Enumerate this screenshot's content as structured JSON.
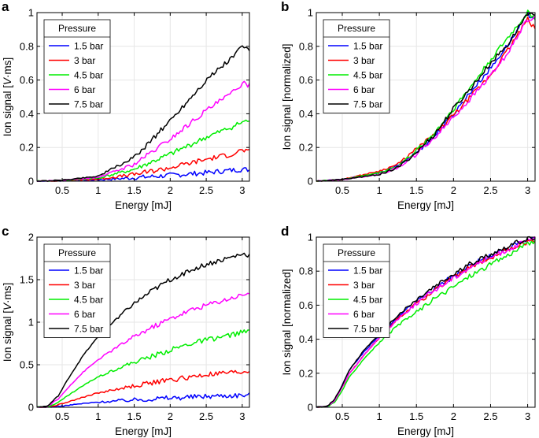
{
  "chart_data": [
    {
      "panel": "a",
      "type": "line",
      "xlabel": "Energy [mJ]",
      "ylabel": "Ion signal [V·ms]",
      "ylabel_parts": [
        "Ion signal [",
        "V",
        "·ms]"
      ],
      "xlim": [
        0.15,
        3.1
      ],
      "ylim": [
        0,
        1
      ],
      "xticks": [
        "0.5",
        "1",
        "1.5",
        "2",
        "2.5",
        "3"
      ],
      "yticks": [
        "0",
        "0.2",
        "0.4",
        "0.6",
        "0.8",
        "1"
      ],
      "grid": true,
      "legend_title": "Pressure",
      "legend_position": "top-left",
      "series": [
        {
          "name": "1.5 bar",
          "color": "#0000ff",
          "x": [
            0.15,
            0.5,
            1.0,
            1.5,
            2.0,
            2.5,
            2.85,
            3.0,
            3.1
          ],
          "y": [
            0,
            0.002,
            0.008,
            0.02,
            0.035,
            0.05,
            0.065,
            0.07,
            0.068
          ]
        },
        {
          "name": "3 bar",
          "color": "#ff0000",
          "x": [
            0.15,
            0.5,
            1.0,
            1.5,
            2.0,
            2.5,
            2.85,
            3.0,
            3.1
          ],
          "y": [
            0,
            0.003,
            0.012,
            0.04,
            0.08,
            0.13,
            0.16,
            0.185,
            0.175
          ]
        },
        {
          "name": "4.5 bar",
          "color": "#00ee00",
          "x": [
            0.15,
            0.5,
            1.0,
            1.5,
            2.0,
            2.5,
            2.85,
            3.0,
            3.1
          ],
          "y": [
            0,
            0.004,
            0.018,
            0.07,
            0.16,
            0.26,
            0.32,
            0.35,
            0.36
          ]
        },
        {
          "name": "6 bar",
          "color": "#ff00ff",
          "x": [
            0.15,
            0.5,
            1.0,
            1.5,
            2.0,
            2.5,
            2.85,
            3.0,
            3.1
          ],
          "y": [
            0,
            0.005,
            0.022,
            0.1,
            0.25,
            0.42,
            0.52,
            0.58,
            0.57
          ]
        },
        {
          "name": "7.5 bar",
          "color": "#000000",
          "x": [
            0.15,
            0.5,
            1.0,
            1.5,
            2.0,
            2.5,
            2.85,
            3.0,
            3.1
          ],
          "y": [
            0,
            0.006,
            0.03,
            0.14,
            0.36,
            0.6,
            0.73,
            0.8,
            0.78
          ]
        }
      ]
    },
    {
      "panel": "b",
      "type": "line",
      "xlabel": "Energy [mJ]",
      "ylabel": "Ion signal [normalized]",
      "xlim": [
        0.15,
        3.1
      ],
      "ylim": [
        0,
        1
      ],
      "xticks": [
        "0.5",
        "1",
        "1.5",
        "2",
        "2.5",
        "3"
      ],
      "yticks": [
        "0",
        "0.2",
        "0.4",
        "0.6",
        "0.8",
        "1"
      ],
      "grid": true,
      "legend_title": "Pressure",
      "legend_position": "top-left",
      "series": [
        {
          "name": "1.5 bar",
          "color": "#0000ff",
          "x": [
            0.15,
            0.5,
            1.0,
            1.25,
            1.5,
            1.75,
            2.0,
            2.25,
            2.5,
            2.75,
            3.0,
            3.1
          ],
          "y": [
            0,
            0.01,
            0.05,
            0.09,
            0.17,
            0.27,
            0.4,
            0.54,
            0.67,
            0.82,
            0.99,
            0.97
          ]
        },
        {
          "name": "3 bar",
          "color": "#ff0000",
          "x": [
            0.15,
            0.5,
            1.0,
            1.25,
            1.5,
            1.75,
            2.0,
            2.25,
            2.5,
            2.75,
            3.0,
            3.1
          ],
          "y": [
            0,
            0.01,
            0.06,
            0.1,
            0.19,
            0.28,
            0.39,
            0.51,
            0.63,
            0.79,
            0.96,
            0.9
          ]
        },
        {
          "name": "4.5 bar",
          "color": "#00ee00",
          "x": [
            0.15,
            0.5,
            1.0,
            1.25,
            1.5,
            1.75,
            2.0,
            2.25,
            2.5,
            2.75,
            3.0,
            3.1
          ],
          "y": [
            0,
            0.01,
            0.05,
            0.09,
            0.18,
            0.29,
            0.43,
            0.57,
            0.72,
            0.86,
            1.0,
            0.97
          ]
        },
        {
          "name": "6 bar",
          "color": "#ff00ff",
          "x": [
            0.15,
            0.5,
            1.0,
            1.25,
            1.5,
            1.75,
            2.0,
            2.25,
            2.5,
            2.75,
            3.0,
            3.1
          ],
          "y": [
            0,
            0.01,
            0.04,
            0.08,
            0.16,
            0.26,
            0.38,
            0.5,
            0.63,
            0.77,
            0.96,
            0.98
          ]
        },
        {
          "name": "7.5 bar",
          "color": "#000000",
          "x": [
            0.15,
            0.5,
            1.0,
            1.25,
            1.5,
            1.75,
            2.0,
            2.25,
            2.5,
            2.75,
            3.0,
            3.1
          ],
          "y": [
            0,
            0.01,
            0.04,
            0.08,
            0.17,
            0.28,
            0.43,
            0.56,
            0.7,
            0.82,
            1.0,
            0.97
          ]
        }
      ]
    },
    {
      "panel": "c",
      "type": "line",
      "xlabel": "Energy [mJ]",
      "ylabel": "Ion signal [V·ms]",
      "ylabel_parts": [
        "Ion signal [",
        "V",
        "·ms]"
      ],
      "xlim": [
        0.15,
        3.1
      ],
      "ylim": [
        0,
        2
      ],
      "xticks": [
        "0.5",
        "1",
        "1.5",
        "2",
        "2.5",
        "3"
      ],
      "yticks": [
        "0",
        "0.5",
        "1",
        "1.5",
        "2"
      ],
      "grid": true,
      "legend_title": "Pressure",
      "legend_position": "top-left",
      "series": [
        {
          "name": "1.5 bar",
          "color": "#0000ff",
          "x": [
            0.15,
            0.3,
            0.45,
            0.6,
            0.8,
            1.0,
            1.25,
            1.5,
            1.75,
            2.0,
            2.25,
            2.5,
            2.75,
            3.0,
            3.1
          ],
          "y": [
            0,
            0.002,
            0.01,
            0.025,
            0.045,
            0.06,
            0.075,
            0.088,
            0.1,
            0.11,
            0.12,
            0.13,
            0.138,
            0.143,
            0.145
          ]
        },
        {
          "name": "3 bar",
          "color": "#ff0000",
          "x": [
            0.15,
            0.3,
            0.45,
            0.6,
            0.8,
            1.0,
            1.25,
            1.5,
            1.75,
            2.0,
            2.25,
            2.5,
            2.75,
            3.0,
            3.1
          ],
          "y": [
            0,
            0.004,
            0.03,
            0.07,
            0.12,
            0.17,
            0.21,
            0.25,
            0.29,
            0.32,
            0.35,
            0.38,
            0.4,
            0.41,
            0.43
          ]
        },
        {
          "name": "4.5 bar",
          "color": "#00ee00",
          "x": [
            0.15,
            0.3,
            0.45,
            0.6,
            0.8,
            1.0,
            1.25,
            1.5,
            1.75,
            2.0,
            2.25,
            2.5,
            2.75,
            3.0,
            3.1
          ],
          "y": [
            0,
            0.008,
            0.06,
            0.15,
            0.26,
            0.36,
            0.45,
            0.53,
            0.6,
            0.67,
            0.74,
            0.79,
            0.83,
            0.88,
            0.89
          ]
        },
        {
          "name": "6 bar",
          "color": "#ff00ff",
          "x": [
            0.15,
            0.3,
            0.45,
            0.6,
            0.8,
            1.0,
            1.25,
            1.5,
            1.75,
            2.0,
            2.25,
            2.5,
            2.75,
            3.0,
            3.1
          ],
          "y": [
            0,
            0.012,
            0.1,
            0.25,
            0.42,
            0.56,
            0.7,
            0.83,
            0.94,
            1.04,
            1.13,
            1.2,
            1.26,
            1.32,
            1.35
          ]
        },
        {
          "name": "7.5 bar",
          "color": "#000000",
          "x": [
            0.15,
            0.3,
            0.45,
            0.6,
            0.8,
            1.0,
            1.25,
            1.5,
            1.75,
            2.0,
            2.25,
            2.5,
            2.75,
            3.0,
            3.1
          ],
          "y": [
            0,
            0.015,
            0.14,
            0.36,
            0.62,
            0.83,
            1.04,
            1.22,
            1.37,
            1.5,
            1.6,
            1.68,
            1.74,
            1.8,
            1.79
          ]
        }
      ]
    },
    {
      "panel": "d",
      "type": "line",
      "xlabel": "Energy [mJ]",
      "ylabel": "Ion signal [normalized]",
      "xlim": [
        0.15,
        3.1
      ],
      "ylim": [
        0,
        1
      ],
      "xticks": [
        "0.5",
        "1",
        "1.5",
        "2",
        "2.5",
        "3"
      ],
      "yticks": [
        "0",
        "0.2",
        "0.4",
        "0.6",
        "0.8",
        "1"
      ],
      "grid": true,
      "legend_title": "Pressure",
      "legend_position": "top-left",
      "series": [
        {
          "name": "1.5 bar",
          "color": "#0000ff",
          "x": [
            0.15,
            0.3,
            0.4,
            0.5,
            0.6,
            0.8,
            1.0,
            1.25,
            1.5,
            1.75,
            2.0,
            2.25,
            2.5,
            2.75,
            3.0,
            3.1
          ],
          "y": [
            0,
            0.005,
            0.04,
            0.13,
            0.22,
            0.33,
            0.42,
            0.53,
            0.62,
            0.7,
            0.77,
            0.84,
            0.89,
            0.94,
            0.98,
            0.99
          ]
        },
        {
          "name": "3 bar",
          "color": "#ff0000",
          "x": [
            0.15,
            0.3,
            0.4,
            0.5,
            0.6,
            0.8,
            1.0,
            1.25,
            1.5,
            1.75,
            2.0,
            2.25,
            2.5,
            2.75,
            3.0,
            3.1
          ],
          "y": [
            0,
            0.005,
            0.04,
            0.12,
            0.2,
            0.31,
            0.41,
            0.52,
            0.61,
            0.69,
            0.76,
            0.83,
            0.88,
            0.93,
            0.97,
            0.98
          ]
        },
        {
          "name": "4.5 bar",
          "color": "#00ee00",
          "x": [
            0.15,
            0.3,
            0.4,
            0.5,
            0.6,
            0.8,
            1.0,
            1.25,
            1.5,
            1.75,
            2.0,
            2.25,
            2.5,
            2.75,
            3.0,
            3.1
          ],
          "y": [
            0,
            0.005,
            0.03,
            0.1,
            0.18,
            0.29,
            0.38,
            0.48,
            0.56,
            0.64,
            0.71,
            0.78,
            0.84,
            0.9,
            0.96,
            0.98
          ]
        },
        {
          "name": "6 bar",
          "color": "#ff00ff",
          "x": [
            0.15,
            0.3,
            0.4,
            0.5,
            0.6,
            0.8,
            1.0,
            1.25,
            1.5,
            1.75,
            2.0,
            2.25,
            2.5,
            2.75,
            3.0,
            3.1
          ],
          "y": [
            0,
            0.005,
            0.04,
            0.12,
            0.2,
            0.31,
            0.41,
            0.52,
            0.61,
            0.69,
            0.76,
            0.83,
            0.88,
            0.93,
            0.98,
            0.99
          ]
        },
        {
          "name": "7.5 bar",
          "color": "#000000",
          "x": [
            0.15,
            0.3,
            0.4,
            0.5,
            0.6,
            0.8,
            1.0,
            1.25,
            1.5,
            1.75,
            2.0,
            2.25,
            2.5,
            2.75,
            3.0,
            3.1
          ],
          "y": [
            0,
            0.005,
            0.05,
            0.13,
            0.22,
            0.34,
            0.43,
            0.54,
            0.63,
            0.71,
            0.78,
            0.85,
            0.9,
            0.95,
            0.99,
            0.99
          ]
        }
      ]
    }
  ]
}
